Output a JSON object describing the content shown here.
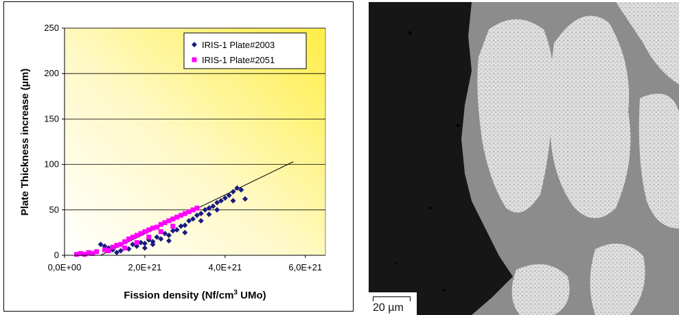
{
  "chart_data": {
    "type": "scatter",
    "title": "",
    "xlabel": "Fission density (Nf/cm³ UMo)",
    "ylabel": "Plate Thickness increase (µm)",
    "xlim": [
      0,
      6.5e+21
    ],
    "ylim": [
      0,
      250
    ],
    "x_ticks": [
      0,
      2e+21,
      4e+21,
      6e+21
    ],
    "x_tick_labels": [
      "0,0E+00",
      "2,0E+21",
      "4,0E+21",
      "6,0E+21"
    ],
    "y_ticks": [
      0,
      50,
      100,
      150,
      200,
      250
    ],
    "y_tick_labels": [
      "0",
      "50",
      "100",
      "150",
      "200",
      "250"
    ],
    "grid": "horizontal",
    "legend_position": "top-right",
    "background": "gradient white to yellow",
    "series": [
      {
        "name": "IRIS-1 Plate#2003",
        "marker": "diamond",
        "color": "#1a1a80",
        "points": [
          [
            9e+20,
            12
          ],
          [
            1e+21,
            10
          ],
          [
            1.1e+21,
            8
          ],
          [
            1.2e+21,
            6
          ],
          [
            1.3e+21,
            3
          ],
          [
            1.4e+21,
            5
          ],
          [
            1.5e+21,
            8
          ],
          [
            1.6e+21,
            7
          ],
          [
            1.7e+21,
            12
          ],
          [
            1.8e+21,
            10
          ],
          [
            1.9e+21,
            14
          ],
          [
            2e+21,
            13
          ],
          [
            2.1e+21,
            17
          ],
          [
            2.2e+21,
            15
          ],
          [
            2.3e+21,
            20
          ],
          [
            2.4e+21,
            18
          ],
          [
            2.5e+21,
            24
          ],
          [
            2.6e+21,
            22
          ],
          [
            2.7e+21,
            27
          ],
          [
            2.8e+21,
            28
          ],
          [
            2.9e+21,
            32
          ],
          [
            3e+21,
            33
          ],
          [
            3.1e+21,
            38
          ],
          [
            3.2e+21,
            40
          ],
          [
            3.3e+21,
            44
          ],
          [
            3.4e+21,
            46
          ],
          [
            3.5e+21,
            50
          ],
          [
            3.6e+21,
            52
          ],
          [
            3.7e+21,
            54
          ],
          [
            3.8e+21,
            58
          ],
          [
            3.9e+21,
            60
          ],
          [
            4e+21,
            63
          ],
          [
            4.1e+21,
            66
          ],
          [
            4.2e+21,
            70
          ],
          [
            4.3e+21,
            74
          ],
          [
            4.4e+21,
            72
          ],
          [
            4.5e+21,
            62
          ],
          [
            2e+21,
            8
          ],
          [
            2.2e+21,
            12
          ],
          [
            2.6e+21,
            16
          ],
          [
            3e+21,
            25
          ],
          [
            3.4e+21,
            38
          ],
          [
            3.8e+21,
            50
          ],
          [
            4.2e+21,
            60
          ],
          [
            3.6e+21,
            45
          ]
        ]
      },
      {
        "name": "IRIS-1 Plate#2051",
        "marker": "square",
        "color": "#ff00ff",
        "points": [
          [
            3e+20,
            1
          ],
          [
            4e+20,
            2
          ],
          [
            5e+20,
            1
          ],
          [
            6e+20,
            3
          ],
          [
            7e+20,
            2
          ],
          [
            8e+20,
            4
          ],
          [
            1e+21,
            6
          ],
          [
            1.1e+21,
            5
          ],
          [
            1.2e+21,
            9
          ],
          [
            1.3e+21,
            11
          ],
          [
            1.4e+21,
            12
          ],
          [
            1.5e+21,
            15
          ],
          [
            1.6e+21,
            18
          ],
          [
            1.7e+21,
            20
          ],
          [
            1.8e+21,
            22
          ],
          [
            1.9e+21,
            24
          ],
          [
            2e+21,
            26
          ],
          [
            2.1e+21,
            28
          ],
          [
            2.2e+21,
            30
          ],
          [
            2.3e+21,
            31
          ],
          [
            2.4e+21,
            34
          ],
          [
            2.5e+21,
            36
          ],
          [
            2.6e+21,
            38
          ],
          [
            2.7e+21,
            40
          ],
          [
            2.8e+21,
            42
          ],
          [
            2.9e+21,
            44
          ],
          [
            3e+21,
            46
          ],
          [
            3.1e+21,
            48
          ],
          [
            3.2e+21,
            50
          ],
          [
            3.3e+21,
            52
          ],
          [
            1.5e+21,
            8
          ],
          [
            1.8e+21,
            14
          ],
          [
            2.1e+21,
            20
          ],
          [
            2.4e+21,
            26
          ],
          [
            2.7e+21,
            32
          ]
        ]
      }
    ],
    "trendline": {
      "color": "#000000",
      "from": [
        9e+20,
        0
      ],
      "to": [
        5.7e+21,
        103
      ]
    }
  },
  "micrograph": {
    "scale_label": "20 µm"
  }
}
